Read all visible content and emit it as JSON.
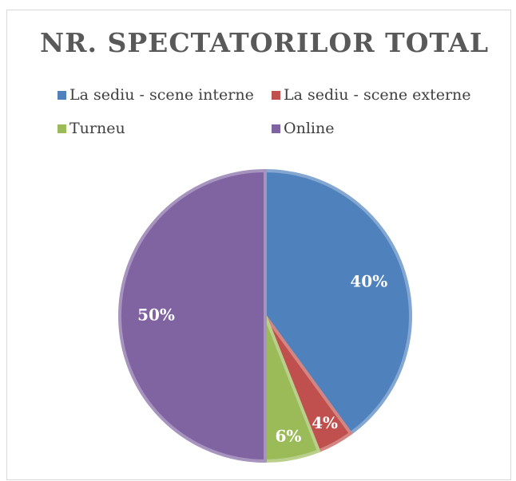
{
  "chart_data": {
    "type": "pie",
    "title": "NR. SPECTATORILOR TOTAL",
    "categories": [
      "La sediu - scene interne",
      "La sediu - scene externe",
      "Turneu",
      "Online"
    ],
    "values": [
      40,
      4,
      6,
      50
    ],
    "value_labels": [
      "40%",
      "4%",
      "6%",
      "50%"
    ],
    "colors": [
      "#4f81bd",
      "#c0504d",
      "#9bbb59",
      "#8064a2"
    ],
    "legend": "top"
  }
}
